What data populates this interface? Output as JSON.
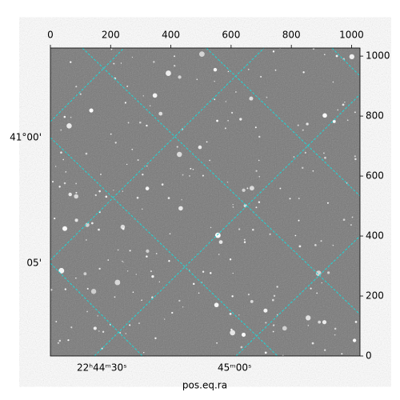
{
  "chart_data": {
    "type": "image",
    "xlabel": "pos.eq.ra",
    "xlim": [
      0,
      1028
    ],
    "xticks": [
      0,
      200,
      400,
      600,
      800,
      1000
    ],
    "y2lim": [
      0,
      1027
    ],
    "y2ticks": [
      0,
      200,
      400,
      600,
      800,
      1000
    ],
    "world_x_ticks": [
      "22ʰ44ᵐ30ˢ",
      "45ᵐ00ˢ"
    ],
    "world_y_ticks": [
      "41°00'",
      "05'"
    ]
  }
}
